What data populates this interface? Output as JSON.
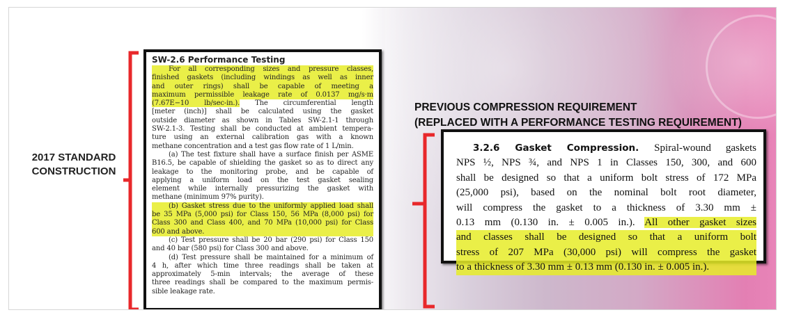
{
  "left_label": [
    "2017 STANDARD",
    "CONSTRUCTION"
  ],
  "left_doc": {
    "title": "SW-2.6  Performance Testing",
    "lines": [
      {
        "t": "For all corresponding sizes and pressure classes,",
        "h": true,
        "i": true
      },
      {
        "t": "finished gaskets (including windings as well as inner",
        "h": true
      },
      {
        "t": "and outer rings) shall be capable of meeting a",
        "h": true
      },
      {
        "t": "maximum permissible leakage rate of 0.0137 mg/s·m",
        "h": true
      },
      {
        "t": "(7.67E−10 lb/sec-in.). The circumferential length",
        "h": "part",
        "hp": "(7.67E−10 lb/sec-in.).",
        "rest": " The circumferential length"
      },
      {
        "t": "[meter (inch)] shall be calculated using the gasket"
      },
      {
        "t": "outside diameter as shown in Tables SW-2.1-1 through"
      },
      {
        "t": "SW-2.1-3. Testing shall be conducted at ambient tempera-"
      },
      {
        "t": "ture using an external calibration gas with a known"
      },
      {
        "t": "methane concentration and a test gas flow rate of 1 L/min.",
        "last": true
      },
      {
        "t": "(a) The test fixture shall have a surface finish per ASME",
        "i": true
      },
      {
        "t": "B16.5, be capable of shielding the gasket so as to direct any"
      },
      {
        "t": "leakage to the monitoring probe, and be capable of"
      },
      {
        "t": "applying a uniform load on the test gasket sealing"
      },
      {
        "t": "element while internally pressurizing the gasket with"
      },
      {
        "t": "methane (minimum 97% purity).",
        "last": true
      },
      {
        "t": "(b) Gasket stress due to the uniformly applied load shall",
        "h": true,
        "i": true
      },
      {
        "t": "be 35 MPa (5,000 psi) for Class 150, 56 MPa (8,000 psi) for",
        "h": true
      },
      {
        "t": "Class 300 and Class 400, and 70 MPa (10,000 psi) for Class",
        "h": true
      },
      {
        "t": "600 and above.",
        "h": true,
        "last": true
      },
      {
        "t": "(c) Test pressure shall be 20 bar (290 psi) for Class 150",
        "i": true
      },
      {
        "t": "and 40 bar (580 psi) for Class 300 and above.",
        "last": true
      },
      {
        "t": "(d) Test pressure shall be maintained for a minimum of",
        "i": true
      },
      {
        "t": "4 h, after which time three readings shall be taken at"
      },
      {
        "t": "approximately 5-min intervals; the average of these"
      },
      {
        "t": "three readings shall be compared to the maximum permis-"
      },
      {
        "t": "sible leakage rate.",
        "last": true
      }
    ]
  },
  "right_heading": [
    "PREVIOUS COMPRESSION REQUIREMENT",
    "(REPLACED WITH A PERFORMANCE TESTING REQUIREMENT)"
  ],
  "right_doc": {
    "section_title": "3.2.6 Gasket Compression.",
    "lines": [
      {
        "t": "Spiral-wound gaskets"
      },
      {
        "t": "NPS ½, NPS ¾, and NPS 1 in Classes 150, 300, and 600"
      },
      {
        "t": "shall be designed so that a uniform bolt stress of 172 MPa"
      },
      {
        "t": "(25,000 psi), based on the nominal bolt root diameter,"
      },
      {
        "t": "will compress the gasket to a thickness of 3.30 mm ±"
      },
      {
        "t": "0.13 mm (0.130 in. ± 0.005 in.). All other gasket sizes",
        "h": "part",
        "pre": "0.13 mm (0.130 in. ± 0.005 in.). ",
        "hp": "All other gasket sizes"
      },
      {
        "t": "and classes shall be designed so that a uniform bolt",
        "h": true
      },
      {
        "t": "stress of 207 MPa (30,000 psi) will compress the gasket",
        "h": true
      },
      {
        "t": "to a thickness of 3.30 mm ± 0.13 mm (0.130 in. ± 0.005 in.).",
        "h": true
      }
    ]
  },
  "colors": {
    "brace": "#e8282b",
    "highlight": "#e6ec28",
    "pink": "#e884b8"
  }
}
